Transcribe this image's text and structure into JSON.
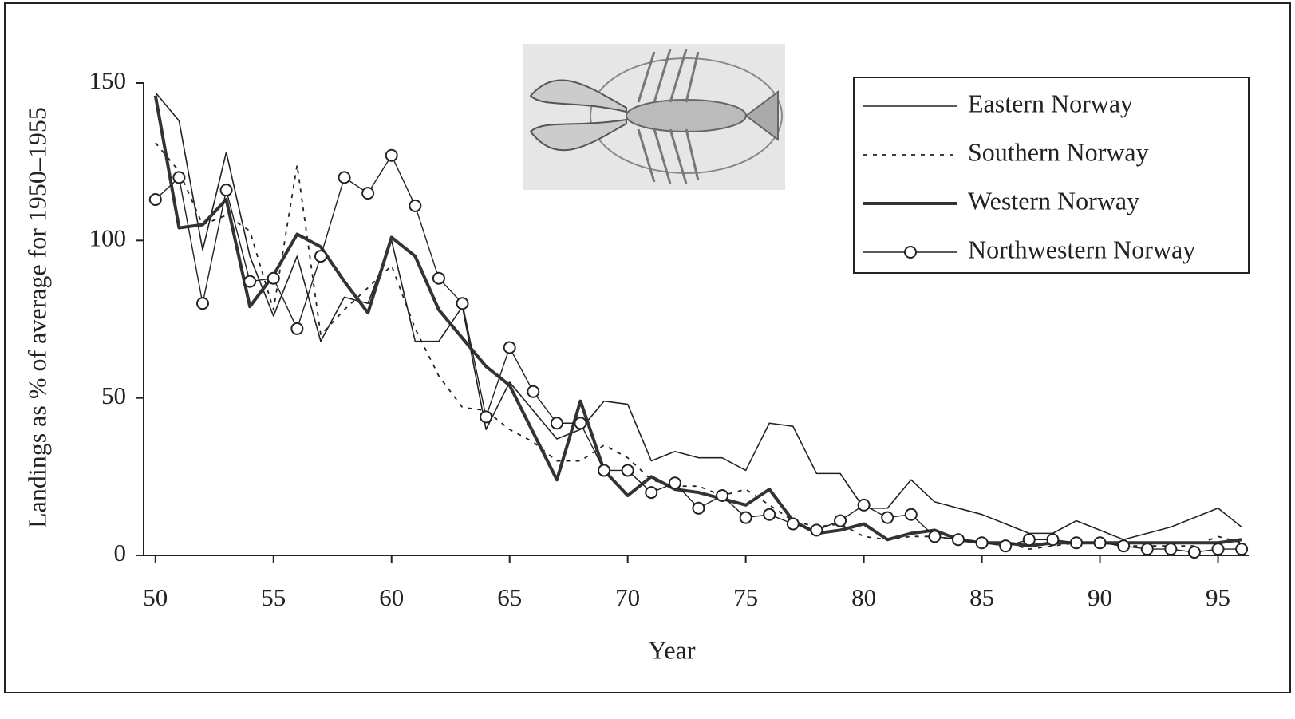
{
  "chart_data": {
    "type": "line",
    "x_label": "Year",
    "y_label": "Landings as % of average for 1950–1955",
    "x": [
      50,
      51,
      52,
      53,
      54,
      55,
      56,
      57,
      58,
      59,
      60,
      61,
      62,
      63,
      64,
      65,
      66,
      67,
      68,
      69,
      70,
      71,
      72,
      73,
      74,
      75,
      76,
      77,
      78,
      79,
      80,
      81,
      82,
      83,
      84,
      85,
      86,
      87,
      88,
      89,
      90,
      91,
      92,
      93,
      94,
      95,
      96
    ],
    "series": [
      {
        "name": "Eastern Norway",
        "color": "#222222",
        "width": 1.6,
        "dash": "none",
        "marker": "none",
        "values": [
          147,
          138,
          97,
          128,
          95,
          76,
          95,
          68,
          82,
          80,
          100,
          68,
          68,
          79,
          40,
          55,
          46,
          37,
          40,
          49,
          48,
          30,
          33,
          31,
          31,
          27,
          42,
          41,
          26,
          26,
          15,
          15,
          24,
          17,
          15,
          13,
          10,
          7,
          7,
          11,
          8,
          5,
          7,
          9,
          12,
          15,
          9
        ]
      },
      {
        "name": "Southern Norway",
        "color": "#222222",
        "width": 1.8,
        "dash": "5 7",
        "marker": "none",
        "values": [
          131,
          122,
          105,
          108,
          103,
          78,
          124,
          70,
          78,
          85,
          92,
          72,
          57,
          47,
          46,
          40,
          36,
          30,
          30,
          35,
          31,
          24,
          22,
          22,
          19,
          21,
          16,
          11,
          9,
          10,
          6,
          5,
          6,
          6,
          5,
          4,
          4,
          2,
          3,
          4,
          4,
          3,
          3,
          3,
          3,
          6,
          4
        ]
      },
      {
        "name": "Western Norway",
        "color": "#333333",
        "width": 4,
        "dash": "none",
        "marker": "none",
        "values": [
          146,
          104,
          105,
          113,
          79,
          89,
          102,
          98,
          87,
          77,
          101,
          95,
          78,
          69,
          60,
          54,
          39,
          24,
          49,
          27,
          19,
          25,
          21,
          20,
          18,
          16,
          21,
          11,
          7,
          8,
          10,
          5,
          7,
          8,
          5,
          4,
          4,
          3,
          4,
          4,
          4,
          4,
          4,
          4,
          4,
          4,
          5
        ]
      },
      {
        "name": "Northwestern Norway",
        "color": "#222222",
        "width": 1.4,
        "dash": "none",
        "marker": "circle",
        "values": [
          113,
          120,
          80,
          116,
          87,
          88,
          72,
          95,
          120,
          115,
          127,
          111,
          88,
          80,
          44,
          66,
          52,
          42,
          42,
          27,
          27,
          20,
          23,
          15,
          19,
          12,
          13,
          10,
          8,
          11,
          16,
          12,
          13,
          6,
          5,
          4,
          3,
          5,
          5,
          4,
          4,
          3,
          2,
          2,
          1,
          2,
          2
        ]
      }
    ],
    "xlim": [
      49.5,
      96.3
    ],
    "xticks": [
      50,
      55,
      60,
      65,
      70,
      75,
      80,
      85,
      90,
      95
    ],
    "ylim": [
      0,
      150
    ],
    "yticks": [
      0,
      50,
      100,
      150
    ],
    "legend": "top-right"
  }
}
